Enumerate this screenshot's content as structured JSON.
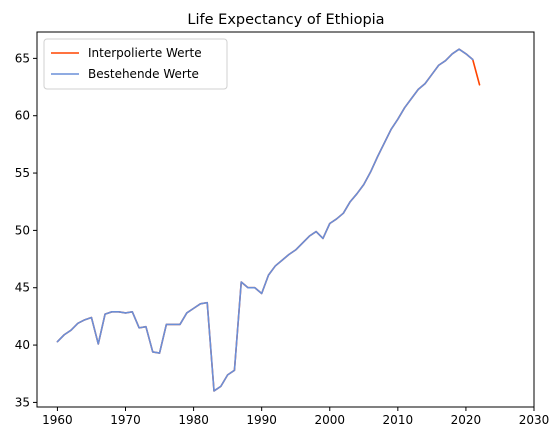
{
  "chart_data": {
    "type": "line",
    "title": "Life Expectancy of Ethiopia",
    "xlabel": "",
    "ylabel": "",
    "xlim": [
      1957,
      2030
    ],
    "ylim": [
      34.6,
      67.3
    ],
    "xticks": [
      1960,
      1970,
      1980,
      1990,
      2000,
      2010,
      2020,
      2030
    ],
    "yticks": [
      35,
      40,
      45,
      50,
      55,
      60,
      65
    ],
    "grid": false,
    "legend_position": "top-left",
    "series": [
      {
        "name": "Interpolierte Werte",
        "color": "#ff4500",
        "x": [
          1960,
          1961,
          1962,
          1963,
          1964,
          1965,
          1966,
          1967,
          1968,
          1969,
          1970,
          1971,
          1972,
          1973,
          1974,
          1975,
          1976,
          1977,
          1978,
          1979,
          1980,
          1981,
          1982,
          1983,
          1984,
          1985,
          1986,
          1987,
          1988,
          1989,
          1990,
          1991,
          1992,
          1993,
          1994,
          1995,
          1996,
          1997,
          1998,
          1999,
          2000,
          2001,
          2002,
          2003,
          2004,
          2005,
          2006,
          2007,
          2008,
          2009,
          2010,
          2011,
          2012,
          2013,
          2014,
          2015,
          2016,
          2017,
          2018,
          2019,
          2020,
          2021,
          2022
        ],
        "y": [
          40.3,
          40.9,
          41.3,
          41.9,
          42.2,
          42.4,
          40.1,
          42.7,
          42.9,
          42.9,
          42.8,
          42.9,
          41.5,
          41.6,
          39.4,
          39.3,
          41.8,
          41.8,
          41.8,
          42.8,
          43.2,
          43.6,
          43.7,
          36.0,
          36.4,
          37.4,
          37.8,
          45.5,
          45.0,
          45.0,
          44.5,
          46.1,
          46.9,
          47.4,
          47.9,
          48.3,
          48.9,
          49.5,
          49.9,
          49.3,
          50.6,
          51.0,
          51.5,
          52.5,
          53.2,
          54.0,
          55.1,
          56.4,
          57.6,
          58.8,
          59.7,
          60.7,
          61.5,
          62.3,
          62.8,
          63.6,
          64.4,
          64.8,
          65.4,
          65.8,
          65.4,
          64.9,
          62.7
        ]
      },
      {
        "name": "Bestehende Werte",
        "color": "#6a8fd8",
        "x": [
          1960,
          1961,
          1962,
          1963,
          1964,
          1965,
          1966,
          1967,
          1968,
          1969,
          1970,
          1971,
          1972,
          1973,
          1974,
          1975,
          1976,
          1977,
          1978,
          1979,
          1980,
          1981,
          1982,
          1983,
          1984,
          1985,
          1986,
          1987,
          1988,
          1989,
          1990,
          1991,
          1992,
          1993,
          1994,
          1995,
          1996,
          1997,
          1998,
          1999,
          2000,
          2001,
          2002,
          2003,
          2004,
          2005,
          2006,
          2007,
          2008,
          2009,
          2010,
          2011,
          2012,
          2013,
          2014,
          2015,
          2016,
          2017,
          2018,
          2019,
          2020,
          2021
        ],
        "y": [
          40.3,
          40.9,
          41.3,
          41.9,
          42.2,
          42.4,
          40.1,
          42.7,
          42.9,
          42.9,
          42.8,
          42.9,
          41.5,
          41.6,
          39.4,
          39.3,
          41.8,
          41.8,
          41.8,
          42.8,
          43.2,
          43.6,
          43.7,
          36.0,
          36.4,
          37.4,
          37.8,
          45.5,
          45.0,
          45.0,
          44.5,
          46.1,
          46.9,
          47.4,
          47.9,
          48.3,
          48.9,
          49.5,
          49.9,
          49.3,
          50.6,
          51.0,
          51.5,
          52.5,
          53.2,
          54.0,
          55.1,
          56.4,
          57.6,
          58.8,
          59.7,
          60.7,
          61.5,
          62.3,
          62.8,
          63.6,
          64.4,
          64.8,
          65.4,
          65.8,
          65.4,
          64.9
        ]
      }
    ]
  }
}
